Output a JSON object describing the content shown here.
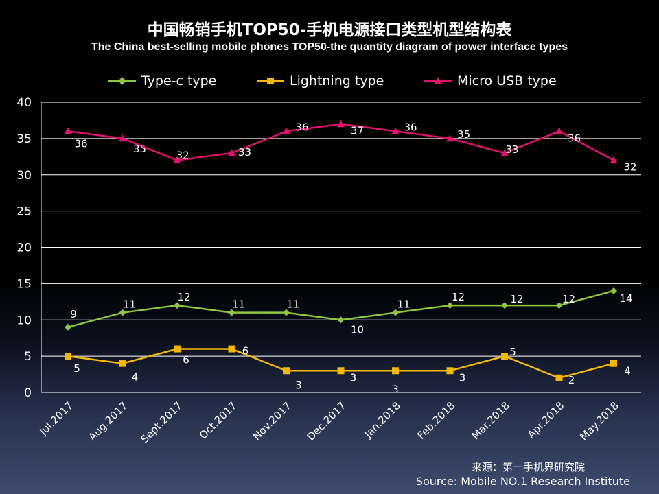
{
  "title_cn": "中国畅销手机TOP50-手机电源接口类型机型结构表",
  "title_en": "The China best-selling mobile phones TOP50-the quantity diagram of power interface types",
  "source_cn": "来源：第一手机界研究院",
  "source_en": "Source: Mobile NO.1 Research Institute",
  "colors": {
    "background": "#000000",
    "gridline": "#ffffff",
    "text": "#ffffff"
  },
  "chart_data": {
    "type": "line",
    "title": "中国畅销手机TOP50-手机电源接口类型机型结构表",
    "subtitle": "The China best-selling mobile phones TOP50-the quantity diagram of power interface types",
    "xlabel": "",
    "ylabel": "",
    "ylim": [
      0,
      40
    ],
    "yticks": [
      0,
      5,
      10,
      15,
      20,
      25,
      30,
      35,
      40
    ],
    "grid": true,
    "legend_position": "top",
    "categories": [
      "Jul.2017",
      "Aug.2017",
      "Sept.2017",
      "Oct.2017",
      "Nov.2017",
      "Dec.2017",
      "Jan.2018",
      "Feb.2018",
      "Mar.2018",
      "Apr.2018",
      "May.2018"
    ],
    "series": [
      {
        "name": "Type-c type",
        "color": "#8dc63f",
        "marker": "diamond",
        "values": [
          9,
          11,
          12,
          11,
          11,
          10,
          11,
          12,
          12,
          12,
          14
        ]
      },
      {
        "name": "Lightning type",
        "color": "#f5b800",
        "marker": "square",
        "values": [
          5,
          4,
          6,
          6,
          3,
          3,
          3,
          3,
          5,
          2,
          4
        ]
      },
      {
        "name": "Micro USB type",
        "color": "#e0126e",
        "marker": "triangle",
        "values": [
          36,
          35,
          32,
          33,
          36,
          37,
          36,
          35,
          33,
          36,
          32
        ]
      }
    ]
  }
}
